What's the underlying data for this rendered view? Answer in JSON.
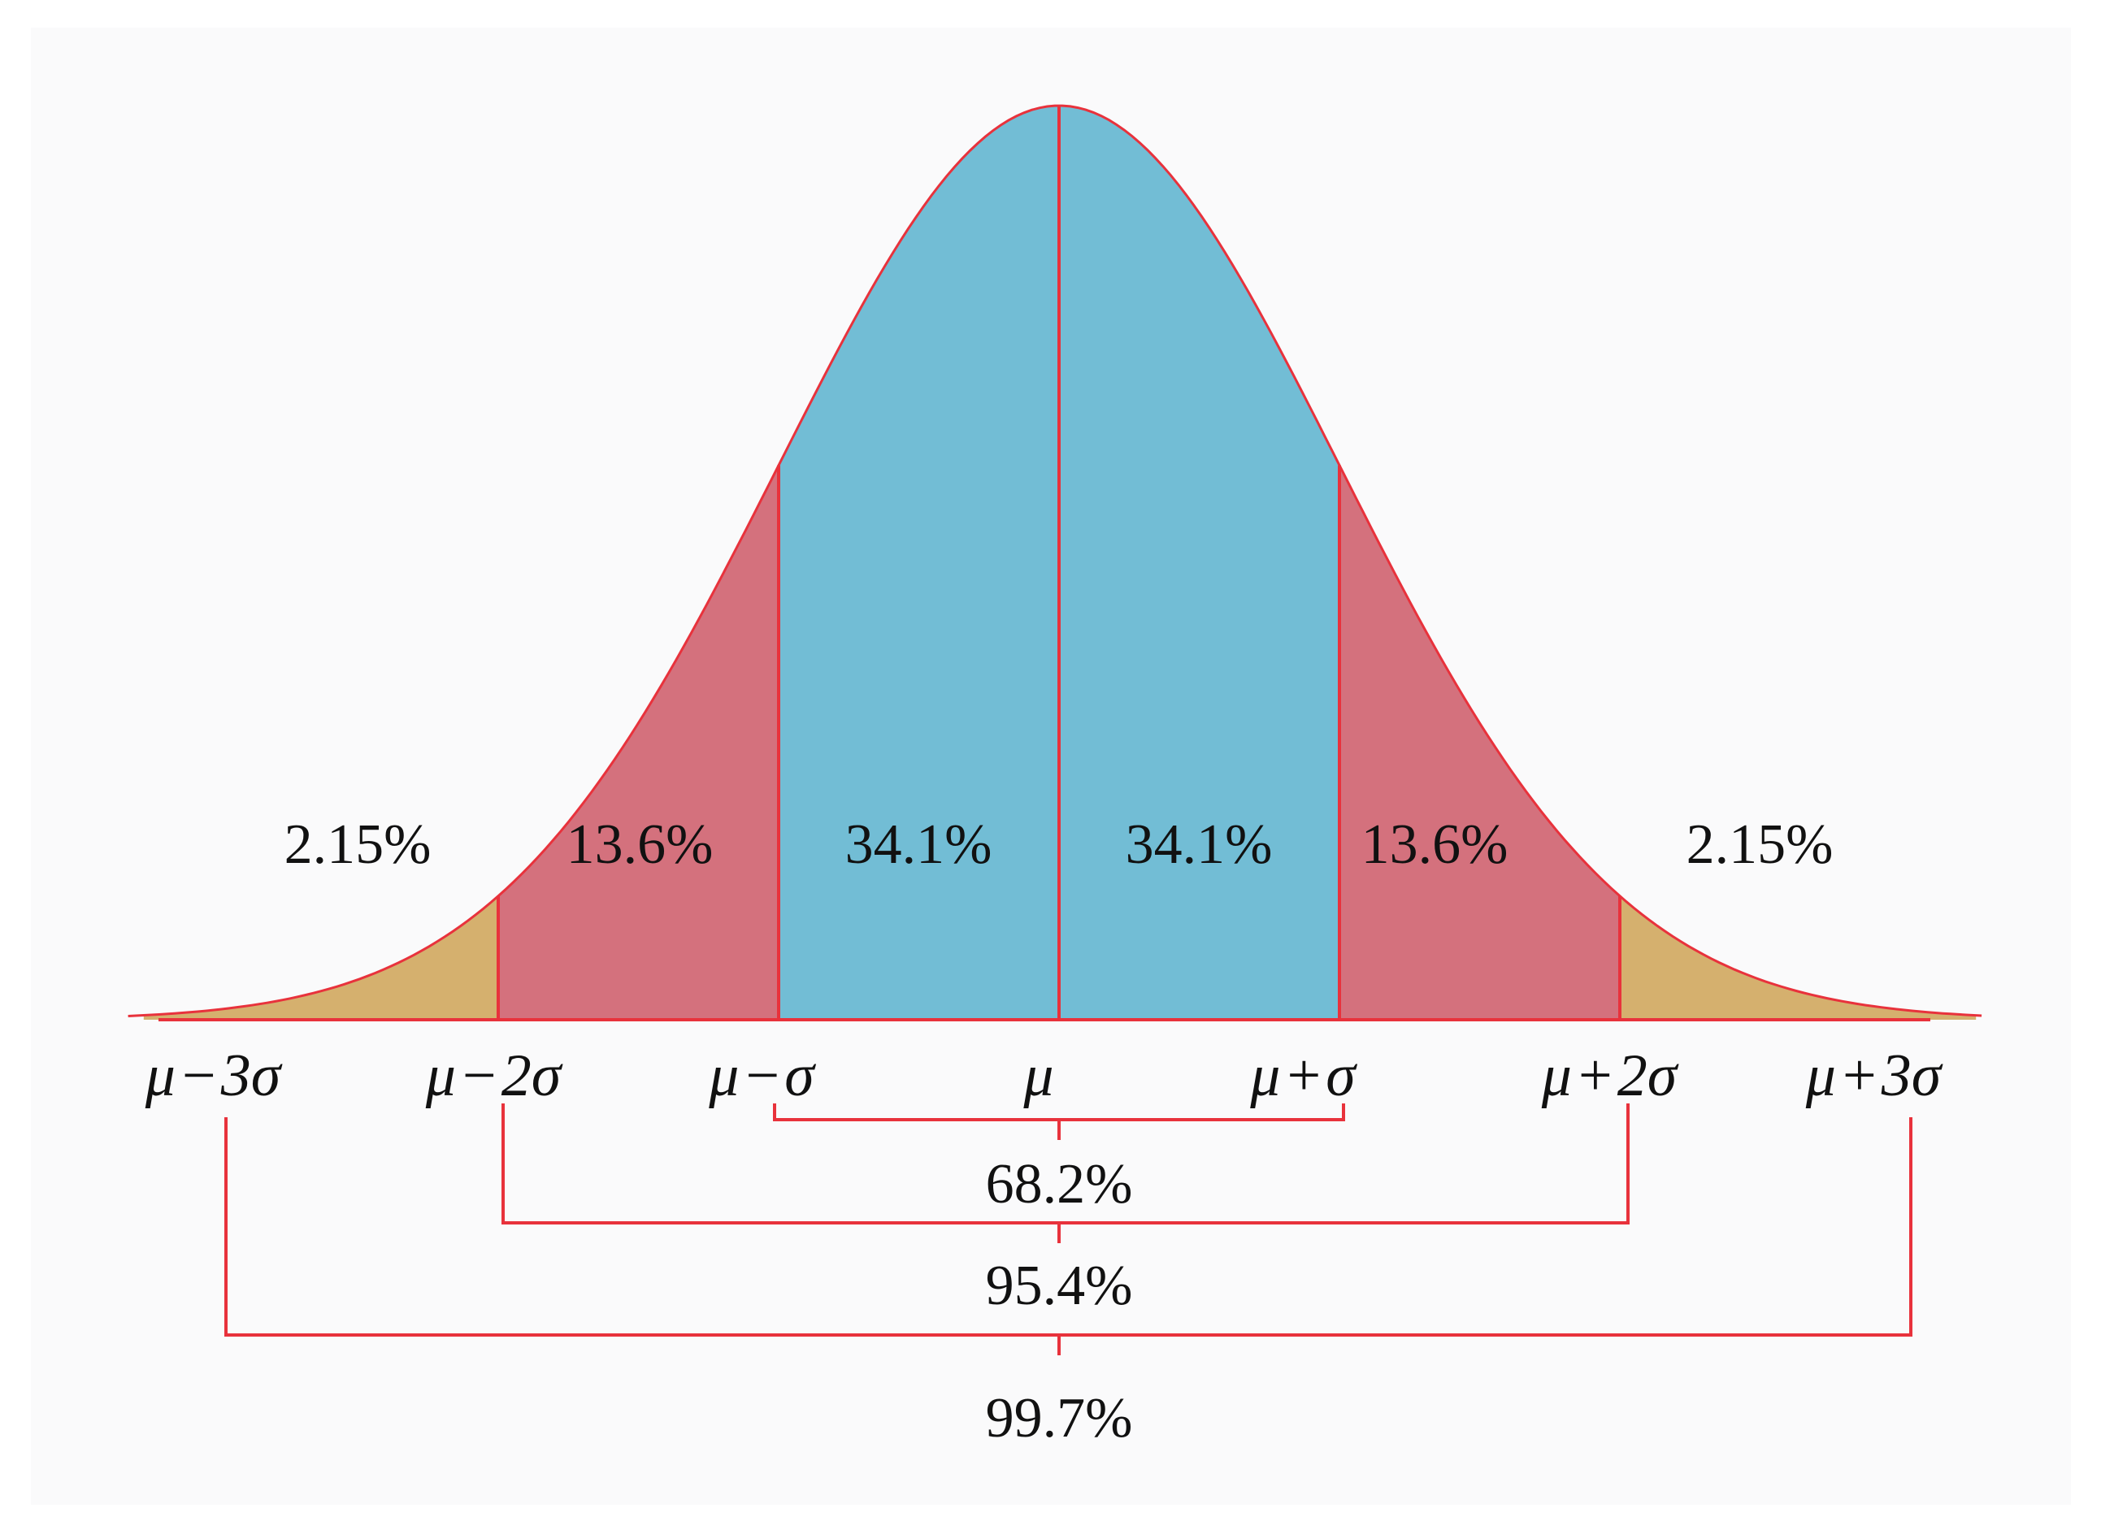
{
  "chart_data": {
    "type": "area",
    "distribution": "normal",
    "regions": [
      {
        "from_sigma": -3,
        "to_sigma": -2,
        "percent": "2.15%",
        "color": "#d5b06e"
      },
      {
        "from_sigma": -2,
        "to_sigma": -1,
        "percent": "13.6%",
        "color": "#d4717d"
      },
      {
        "from_sigma": -1,
        "to_sigma": 0,
        "percent": "34.1%",
        "color": "#72bdd5"
      },
      {
        "from_sigma": 0,
        "to_sigma": 1,
        "percent": "34.1%",
        "color": "#72bdd5"
      },
      {
        "from_sigma": 1,
        "to_sigma": 2,
        "percent": "13.6%",
        "color": "#d4717d"
      },
      {
        "from_sigma": 2,
        "to_sigma": 3,
        "percent": "2.15%",
        "color": "#d5b06e"
      }
    ],
    "x_ticks": [
      {
        "sigma": -3,
        "mu": "μ",
        "op": "−",
        "k": "3σ"
      },
      {
        "sigma": -2,
        "mu": "μ",
        "op": "−",
        "k": "2σ"
      },
      {
        "sigma": -1,
        "mu": "μ",
        "op": "−",
        "k": "σ"
      },
      {
        "sigma": 0,
        "mu": "μ",
        "op": "",
        "k": ""
      },
      {
        "sigma": 1,
        "mu": "μ",
        "op": "+",
        "k": "σ"
      },
      {
        "sigma": 2,
        "mu": "μ",
        "op": "+",
        "k": "2σ"
      },
      {
        "sigma": 3,
        "mu": "μ",
        "op": "+",
        "k": "3σ"
      }
    ],
    "intervals": [
      {
        "range_sigma": 1,
        "percent": "68.2%"
      },
      {
        "range_sigma": 2,
        "percent": "95.4%"
      },
      {
        "range_sigma": 3,
        "percent": "99.7%"
      }
    ],
    "line_color": "#e8323c"
  }
}
